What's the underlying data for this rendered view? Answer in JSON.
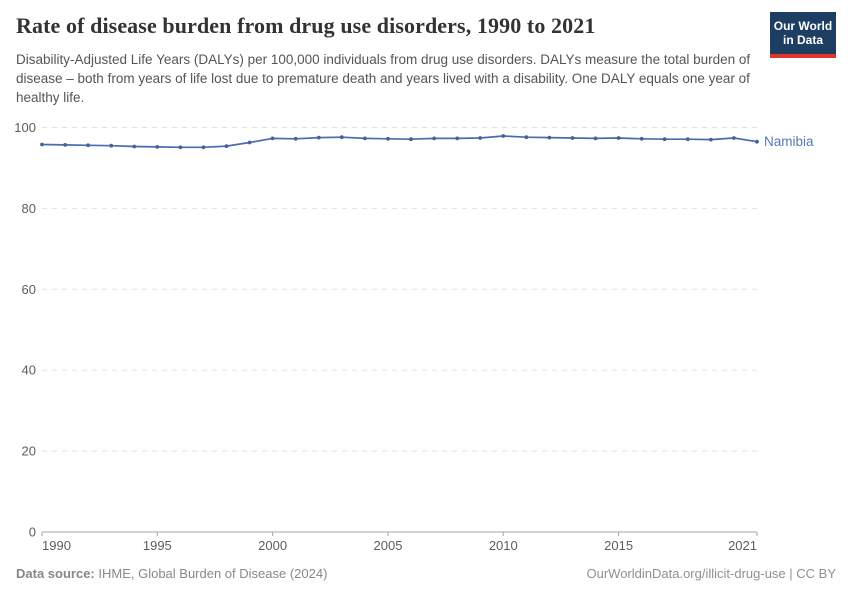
{
  "header": {
    "title": "Rate of disease burden from drug use disorders, 1990 to 2021",
    "subtitle": "Disability-Adjusted Life Years (DALYs) per 100,000 individuals from drug use disorders. DALYs measure the total burden of disease – both from years of life lost due to premature death and years lived with a disability. One DALY equals one year of healthy life.",
    "logo": {
      "line1": "Our World",
      "line2": "in Data"
    }
  },
  "chart_data": {
    "type": "line",
    "title": "Rate of disease burden from drug use disorders, 1990 to 2021",
    "ylabel": "DALYs per 100,000 individuals",
    "x": [
      1990,
      1991,
      1992,
      1993,
      1994,
      1995,
      1996,
      1997,
      1998,
      1999,
      2000,
      2001,
      2002,
      2003,
      2004,
      2005,
      2006,
      2007,
      2008,
      2009,
      2010,
      2011,
      2012,
      2013,
      2014,
      2015,
      2016,
      2017,
      2018,
      2019,
      2020,
      2021
    ],
    "series": [
      {
        "name": "Namibia",
        "values": [
          95.8,
          95.7,
          95.6,
          95.5,
          95.3,
          95.2,
          95.1,
          95.1,
          95.4,
          96.3,
          97.3,
          97.2,
          97.5,
          97.6,
          97.3,
          97.2,
          97.1,
          97.3,
          97.3,
          97.4,
          97.9,
          97.6,
          97.5,
          97.4,
          97.3,
          97.4,
          97.2,
          97.1,
          97.1,
          97.0,
          97.4,
          96.5
        ]
      }
    ],
    "ylim": [
      0,
      100
    ],
    "yticks": [
      0,
      20,
      40,
      60,
      80,
      100
    ],
    "xticks": [
      1990,
      1995,
      2000,
      2005,
      2010,
      2015,
      2021
    ],
    "grid": "horizontal-dashed",
    "legend_position": "line-end-label",
    "entity_label": "Namibia"
  },
  "footer": {
    "datasource_label": "Data source:",
    "datasource_value": " IHME, Global Burden of Disease (2024)",
    "attribution": "OurWorldinData.org/illicit-drug-use | CC BY"
  },
  "colors": {
    "line": "#4a6cae",
    "dot": "#44629c",
    "entity_label": "#5878b6",
    "grid": "#e0e0e0",
    "axis": "#a5a5a5",
    "tick_label": "#5d5d5d",
    "logo_bg": "#1d3d63",
    "logo_red": "#e0352b",
    "title_text": "#333333",
    "subtitle_text": "#555555",
    "footer_text": "#888888"
  }
}
